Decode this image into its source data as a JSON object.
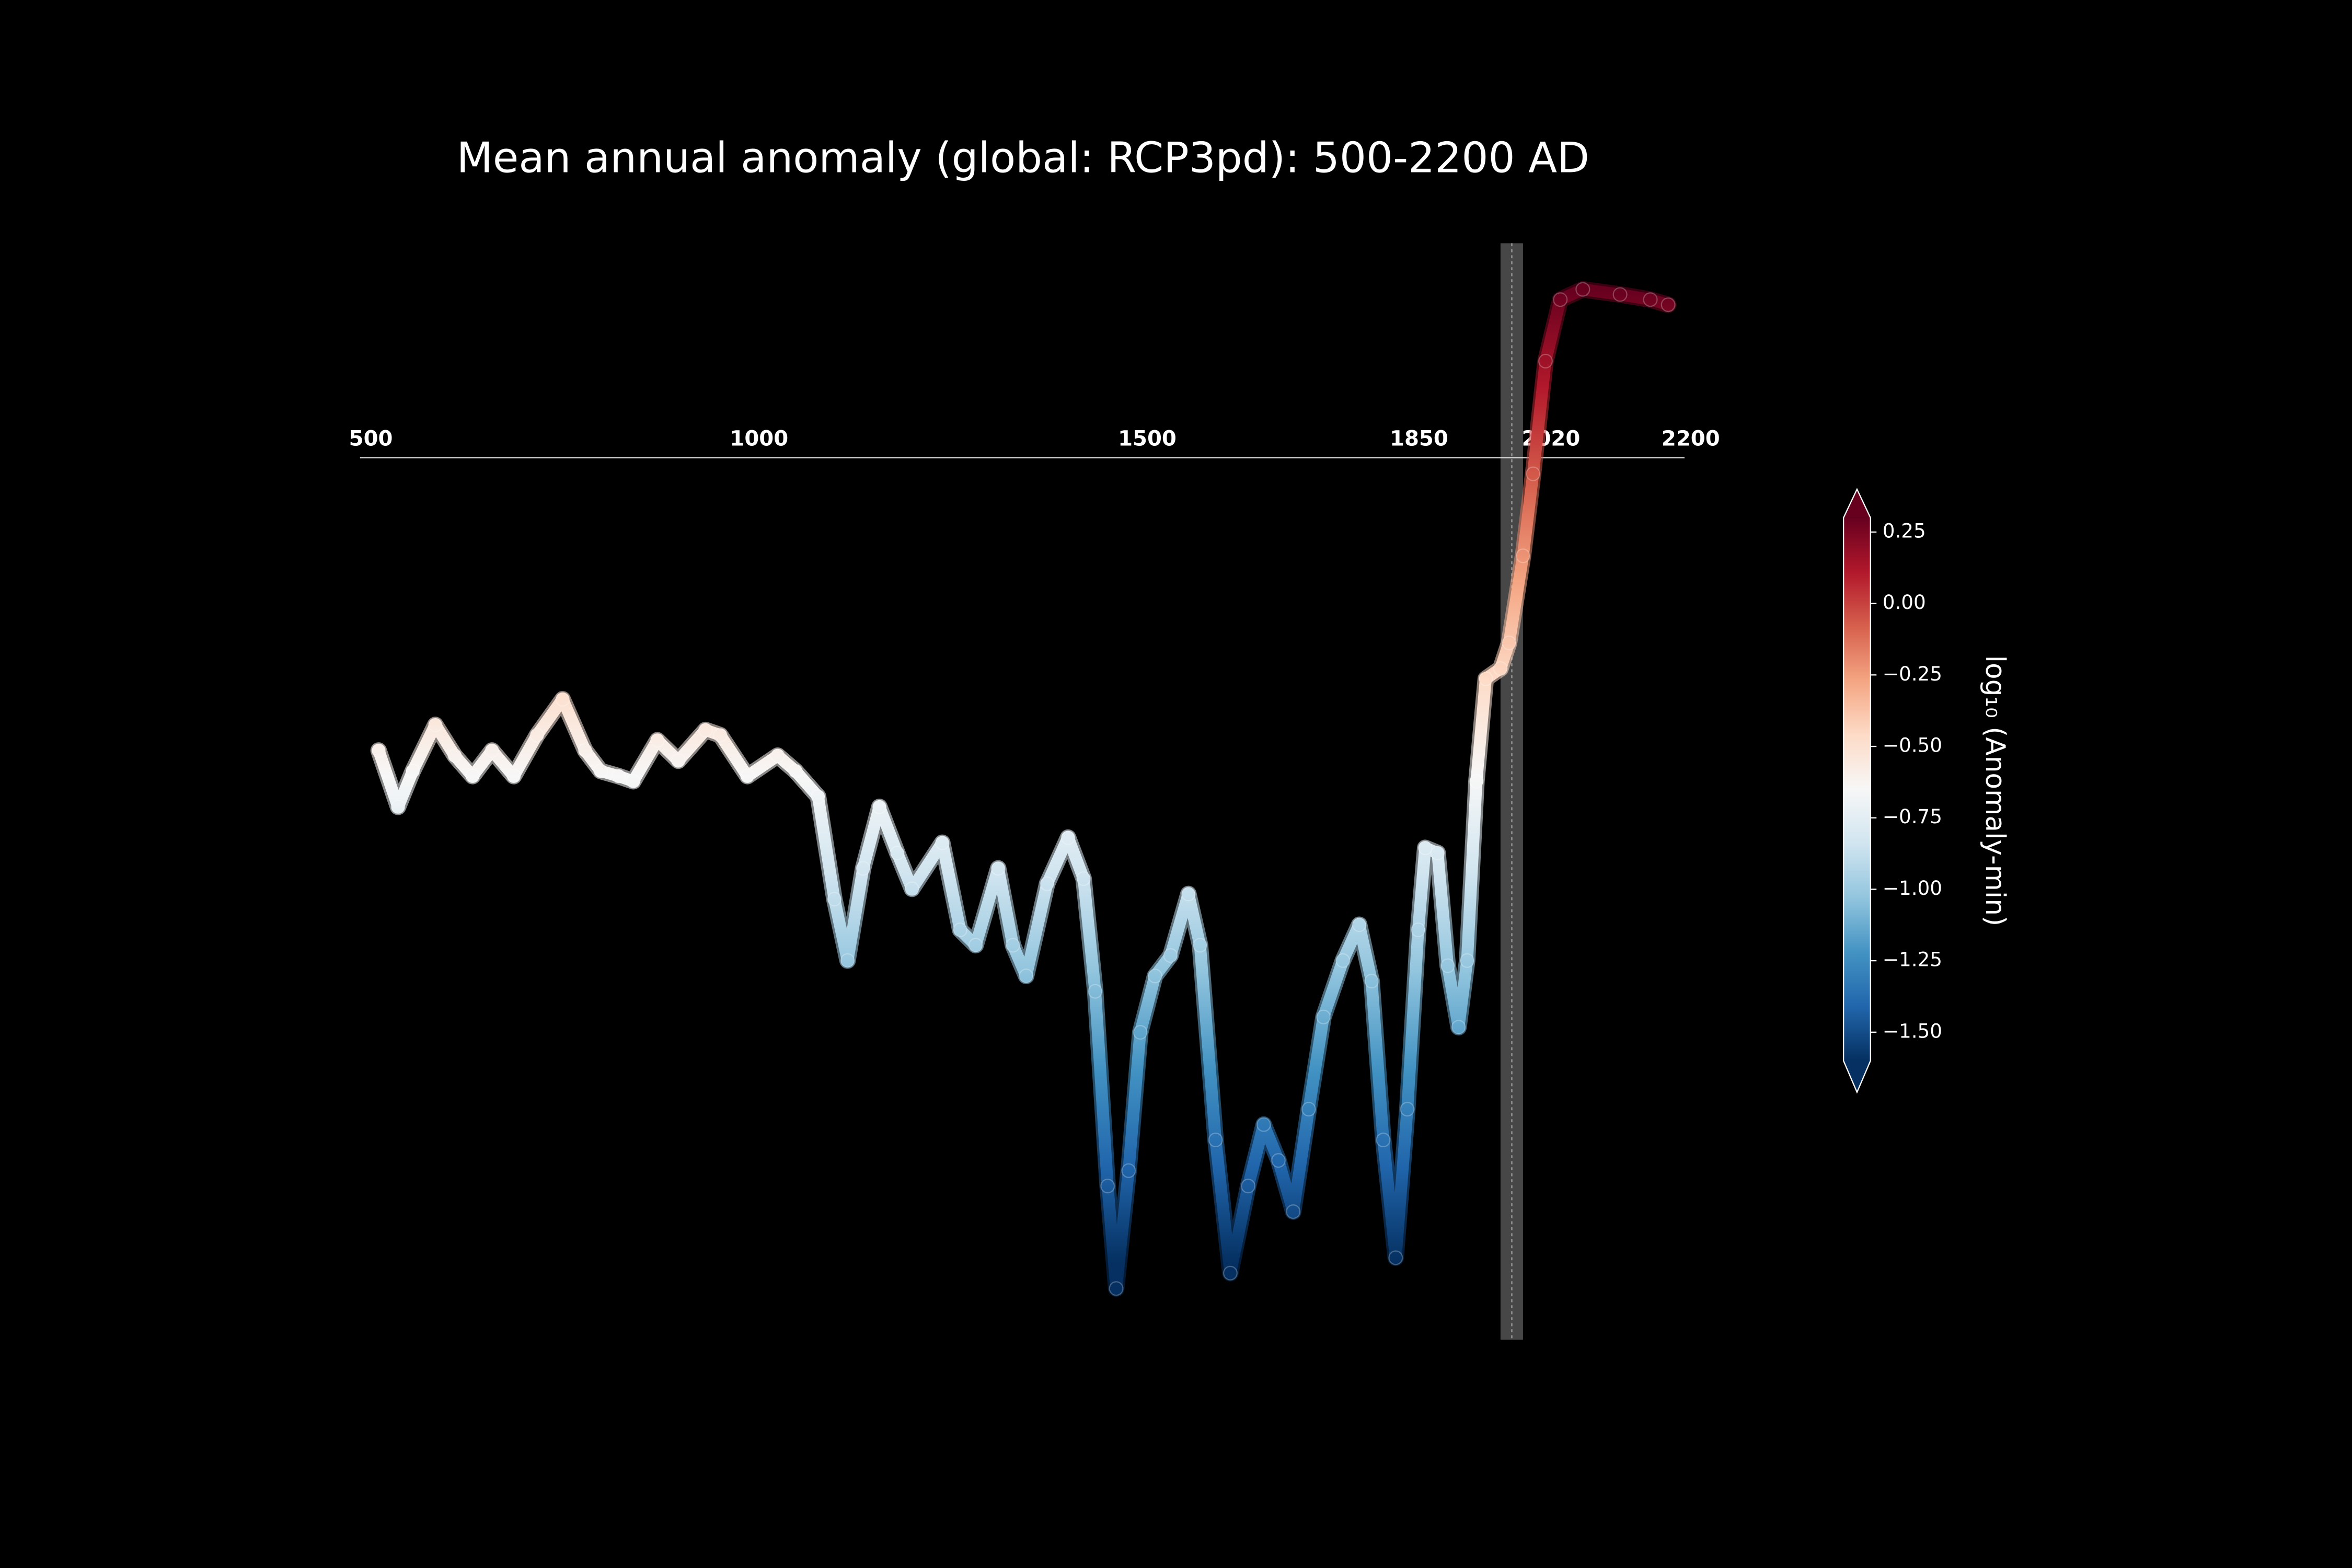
{
  "chart_data": {
    "type": "line",
    "title": "Mean annual anomaly (global: RCP3pd): 500-2200 AD",
    "x": [
      510,
      535,
      554,
      583,
      608,
      631,
      656,
      684,
      714,
      747,
      776,
      796,
      819,
      838,
      869,
      896,
      931,
      950,
      985,
      1024,
      1047,
      1076,
      1097,
      1114,
      1134,
      1155,
      1178,
      1197,
      1236,
      1259,
      1279,
      1308,
      1327,
      1344,
      1371,
      1398,
      1418,
      1433,
      1449,
      1460,
      1476,
      1491,
      1510,
      1530,
      1553,
      1568,
      1588,
      1607,
      1630,
      1650,
      1669,
      1688,
      1708,
      1727,
      1752,
      1773,
      1789,
      1804,
      1820,
      1835,
      1849,
      1858,
      1874,
      1887,
      1901,
      1912,
      1924,
      1936,
      1955,
      1966,
      1984,
      1997,
      2013,
      2032,
      2061,
      2109,
      2148,
      2171
    ],
    "values": [
      -0.6,
      -0.71,
      -0.64,
      -0.55,
      -0.61,
      -0.65,
      -0.6,
      -0.65,
      -0.57,
      -0.5,
      -0.6,
      -0.64,
      -0.65,
      -0.66,
      -0.58,
      -0.62,
      -0.56,
      -0.57,
      -0.65,
      -0.61,
      -0.64,
      -0.69,
      -0.89,
      -1.01,
      -0.83,
      -0.71,
      -0.8,
      -0.87,
      -0.78,
      -0.95,
      -0.98,
      -0.83,
      -0.98,
      -1.04,
      -0.86,
      -0.77,
      -0.85,
      -1.07,
      -1.45,
      -1.65,
      -1.42,
      -1.15,
      -1.04,
      -1.0,
      -0.88,
      -0.98,
      -1.36,
      -1.62,
      -1.45,
      -1.33,
      -1.4,
      -1.5,
      -1.3,
      -1.12,
      -1.01,
      -0.94,
      -1.05,
      -1.36,
      -1.59,
      -1.3,
      -0.95,
      -0.79,
      -0.8,
      -1.02,
      -1.14,
      -1.01,
      -0.66,
      -0.46,
      -0.44,
      -0.39,
      -0.22,
      -0.06,
      0.16,
      0.28,
      0.3,
      0.29,
      0.28,
      0.27
    ],
    "xlim": [
      486,
      2192
    ],
    "xticks": [
      500,
      1000,
      1500,
      1850,
      2020,
      2200
    ],
    "ylim": [
      -1.75,
      0.39
    ],
    "highlight_span": [
      1955,
      1984
    ],
    "colormap": [
      "#053061",
      "#2166ac",
      "#4393c3",
      "#92c5de",
      "#d1e5f0",
      "#f7f7f7",
      "#fddbc7",
      "#f4a582",
      "#d6604d",
      "#b2182b",
      "#67001f"
    ],
    "clim": [
      -1.6,
      0.3
    ],
    "colorbar_label": "log₁₀ (Anomaly-min)",
    "colorbar_ticks": [
      0.25,
      {
        "value": 0,
        "label": "0.00"
      },
      {
        "value": -0.25,
        "label": "−0.25"
      },
      {
        "value": -0.5,
        "label": "−0.50"
      },
      {
        "value": -0.75,
        "label": "−0.75"
      },
      {
        "value": -1,
        "label": "−1.00"
      },
      {
        "value": -1.25,
        "label": "−1.25"
      },
      {
        "value": -1.5,
        "label": "−1.50"
      }
    ]
  }
}
